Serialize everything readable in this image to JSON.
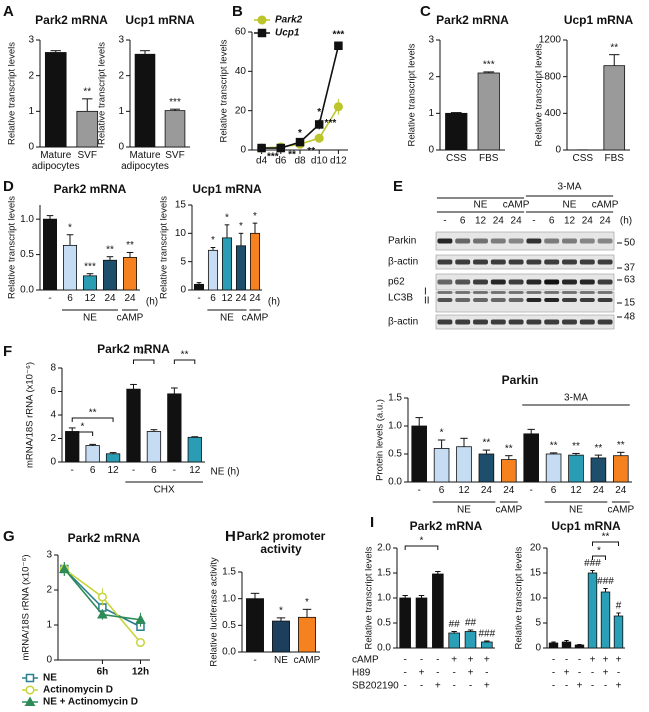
{
  "chart_data": [
    {
      "type": "bar",
      "label": "A",
      "title": "Park2 mRNA",
      "ylabel": "Relative transcript levels",
      "categories": [
        "Mature adipocytes",
        "SVF"
      ],
      "values": [
        2.65,
        1.0
      ],
      "errors": [
        0.05,
        0.35
      ],
      "colors": [
        "#111111",
        "#9a9a9a"
      ],
      "significance": [
        null,
        "**"
      ],
      "ylim": [
        0,
        3
      ],
      "yticks": [
        0,
        1,
        2,
        3
      ]
    },
    {
      "type": "bar",
      "title": "Ucp1 mRNA",
      "ylabel": "Relative transcript levels",
      "categories": [
        "Mature adipocytes",
        "SVF"
      ],
      "values": [
        2.6,
        1.02
      ],
      "errors": [
        0.1,
        0.04
      ],
      "colors": [
        "#111111",
        "#9a9a9a"
      ],
      "significance": [
        null,
        "***"
      ],
      "ylim": [
        0,
        3
      ],
      "yticks": [
        0,
        1,
        2,
        3
      ]
    },
    {
      "type": "line",
      "label": "B",
      "ylabel": "Relative transcript levels",
      "categories": [
        "d4",
        "d6",
        "d8",
        "d10",
        "d12"
      ],
      "series": [
        {
          "name": "Park2",
          "color": "#bcc62a",
          "values": [
            1,
            1.5,
            3,
            6,
            22
          ],
          "errors": [
            0.3,
            0.5,
            1,
            2,
            4
          ],
          "significance": [
            null,
            "***",
            "**",
            "**",
            "***"
          ]
        },
        {
          "name": "Ucp1",
          "color": "#111111",
          "values": [
            1,
            1,
            4,
            13,
            53
          ],
          "errors": [
            0.2,
            0.3,
            1,
            2.5,
            2
          ],
          "significance": [
            null,
            null,
            "*",
            "*",
            "***"
          ]
        }
      ],
      "ylim": [
        0,
        60
      ],
      "yticks": [
        0,
        20,
        40,
        60
      ]
    },
    {
      "type": "bar",
      "label": "C",
      "title": "Park2 mRNA",
      "ylabel": "Relative transcript levels",
      "categories": [
        "CSS",
        "FBS"
      ],
      "values": [
        1.0,
        2.1
      ],
      "errors": [
        0.02,
        0.03
      ],
      "colors": [
        "#111111",
        "#9a9a9a"
      ],
      "significance": [
        null,
        "***"
      ],
      "ylim": [
        0,
        3
      ],
      "yticks": [
        0,
        1,
        2,
        3
      ]
    },
    {
      "type": "bar",
      "title": "Ucp1 mRNA",
      "ylabel": "Relative transcript levels",
      "categories": [
        "CSS",
        "FBS"
      ],
      "values": [
        1,
        920
      ],
      "errors": [
        0,
        120
      ],
      "colors": [
        "#111111",
        "#9a9a9a"
      ],
      "significance": [
        null,
        "**"
      ],
      "ylim": [
        0,
        1200
      ],
      "yticks": [
        0,
        400,
        800,
        1200
      ]
    },
    {
      "type": "bar",
      "label": "D",
      "title": "Park2 mRNA",
      "ylabel": "Relative transcript levels",
      "categories": [
        "-",
        "6",
        "12",
        "24",
        "24"
      ],
      "values": [
        1.0,
        0.63,
        0.2,
        0.42,
        0.46
      ],
      "errors": [
        0.05,
        0.15,
        0.03,
        0.05,
        0.07
      ],
      "colors": [
        "#111111",
        "#c6dcf2",
        "#2a9db5",
        "#1d4e6b",
        "#f5821f"
      ],
      "significance": [
        null,
        "*",
        "***",
        "**",
        "**"
      ],
      "groups": [
        "NE",
        "cAMP"
      ],
      "unit": "(h)",
      "ylim": [
        0,
        1.2
      ],
      "yticks": [
        {
          "value": 0,
          "label": "0.0"
        },
        {
          "value": 0.5,
          "label": "0.5"
        },
        {
          "value": 1,
          "label": "1.0"
        }
      ]
    },
    {
      "type": "bar",
      "title": "Ucp1 mRNA",
      "ylabel": "Relative transcript levels",
      "categories": [
        "-",
        "6",
        "12",
        "24",
        "24"
      ],
      "values": [
        1,
        7,
        9.2,
        7.8,
        10
      ],
      "errors": [
        0.3,
        0.5,
        2.3,
        2.2,
        1.8
      ],
      "colors": [
        "#111111",
        "#c6dcf2",
        "#2a9db5",
        "#1d4e6b",
        "#f5821f"
      ],
      "significance": [
        null,
        "*",
        "*",
        "*",
        "*"
      ],
      "groups": [
        "NE",
        "cAMP"
      ],
      "unit": "(h)",
      "ylim": [
        0,
        15
      ],
      "yticks": [
        0,
        5,
        10,
        15
      ]
    },
    {
      "type": "blot",
      "label": "E",
      "groups": [
        "NE",
        "cAMP",
        "3-MA",
        "NE",
        "cAMP"
      ],
      "lanes": [
        "-",
        "6",
        "12",
        "24",
        "24",
        "-",
        "6",
        "12",
        "24",
        "24"
      ],
      "unit": "(h)",
      "rows": [
        "Parkin",
        "β-actin",
        "p62",
        "LC3B",
        "β-actin"
      ],
      "lc3_forms": [
        "I",
        "II"
      ],
      "markers": [
        50,
        37,
        63,
        15,
        48
      ]
    },
    {
      "type": "bar",
      "title": "Parkin",
      "ylabel": "Protein levels (a.u.)",
      "categories": [
        "-",
        "6",
        "12",
        "24",
        "24",
        "-",
        "6",
        "12",
        "24",
        "24"
      ],
      "values": [
        1.0,
        0.6,
        0.63,
        0.5,
        0.4,
        0.86,
        0.5,
        0.48,
        0.43,
        0.47
      ],
      "errors": [
        0.15,
        0.15,
        0.15,
        0.07,
        0.07,
        0.08,
        0.02,
        0.03,
        0.05,
        0.06
      ],
      "colors": [
        "#111111",
        "#c6dcf2",
        "#c6dcf2",
        "#1d4e6b",
        "#f5821f",
        "#111111",
        "#c6dcf2",
        "#2a9db5",
        "#1d4e6b",
        "#f5821f"
      ],
      "significance": [
        null,
        "*",
        null,
        "**",
        "**",
        null,
        "**",
        "**",
        "**",
        "**"
      ],
      "groups": [
        "NE",
        "cAMP",
        "NE",
        "cAMP",
        "3-MA"
      ],
      "ylim": [
        0,
        1.5
      ],
      "yticks": [
        {
          "value": 0,
          "label": "0.0"
        },
        {
          "value": 0.5,
          "label": "0.5"
        },
        {
          "value": 1,
          "label": "1.0"
        },
        {
          "value": 1.5,
          "label": "1.5"
        }
      ]
    },
    {
      "type": "bar",
      "label": "F",
      "title": "Park2 mRNA",
      "ylabel": "mRNA/18S rRNA (x10⁻⁶)",
      "categories": [
        "-",
        "6",
        "12",
        "-",
        "6",
        "-",
        "12"
      ],
      "values": [
        2.6,
        1.4,
        0.7,
        6.2,
        2.6,
        5.8,
        2.1
      ],
      "errors": [
        0.3,
        0.1,
        0.1,
        0.4,
        0.15,
        0.5,
        0.05
      ],
      "colors": [
        "#111111",
        "#c6dcf2",
        "#2a9db5",
        "#111111",
        "#c6dcf2",
        "#111111",
        "#2a9db5"
      ],
      "brackets": [
        "*",
        "**",
        "**",
        "**"
      ],
      "groups": [
        "CHX"
      ],
      "unit": "NE (h)",
      "ylim": [
        0,
        8
      ],
      "yticks": [
        0,
        2,
        4,
        6,
        8
      ]
    },
    {
      "type": "line",
      "label": "G",
      "title": "Park2 mRNA",
      "ylabel": "mRNA/18S rRNA (x10⁻⁶)",
      "x": [
        0,
        6,
        12
      ],
      "series": [
        {
          "name": "NE",
          "color": "#2a7f8f",
          "values": [
            2.6,
            1.5,
            0.95
          ],
          "errors": [
            0.2,
            0.15,
            0.1
          ]
        },
        {
          "name": "Actinomycin D",
          "color": "#c8d43a",
          "values": [
            2.6,
            1.8,
            0.5
          ],
          "errors": [
            0.2,
            0.25,
            0.1
          ]
        },
        {
          "name": "NE + Actinomycin D",
          "color": "#2e8b57",
          "values": [
            2.6,
            1.3,
            1.15
          ],
          "errors": [
            0.2,
            0.15,
            0.2
          ]
        }
      ],
      "xlim": [
        -1,
        13.5
      ],
      "xticks": [
        {
          "value": 6,
          "label": "6h"
        },
        {
          "value": 12,
          "label": "12h"
        }
      ],
      "ylim": [
        0,
        3
      ],
      "yticks": [
        0,
        1,
        2,
        3
      ]
    },
    {
      "type": "bar",
      "label": "H",
      "title": "Park2 promoter activity",
      "ylabel": "Relative luciferase activity",
      "categories": [
        "-",
        "NE",
        "cAMP"
      ],
      "values": [
        1.0,
        0.58,
        0.65
      ],
      "errors": [
        0.1,
        0.06,
        0.15
      ],
      "colors": [
        "#111111",
        "#1d3f5e",
        "#f5821f"
      ],
      "significance": [
        null,
        "*",
        "*"
      ],
      "ylim": [
        0,
        1.5
      ],
      "yticks": [
        {
          "value": 0,
          "label": "0.0"
        },
        {
          "value": 0.5,
          "label": "0.5"
        },
        {
          "value": 1,
          "label": "1.0"
        },
        {
          "value": 1.5,
          "label": "1.5"
        }
      ]
    },
    {
      "type": "bar",
      "label": "I",
      "title": "Park2 mRNA",
      "ylabel": "Relative transcript levels",
      "values": [
        1.0,
        1.0,
        1.48,
        0.3,
        0.33,
        0.12
      ],
      "errors": [
        0.05,
        0.05,
        0.05,
        0.03,
        0.03,
        0.02
      ],
      "colors": [
        "#111111",
        "#111111",
        "#111111",
        "#2aa0b8",
        "#2aa0b8",
        "#2aa0b8"
      ],
      "significance": [
        null,
        null,
        null,
        "##",
        "##",
        "###"
      ],
      "brackets": [
        "*"
      ],
      "treatments": [
        {
          "name": "cAMP",
          "signs": [
            "-",
            "-",
            "-",
            "+",
            "+",
            "+"
          ]
        },
        {
          "name": "H89",
          "signs": [
            "-",
            "+",
            "-",
            "-",
            "+",
            "-"
          ]
        },
        {
          "name": "SB202190",
          "signs": [
            "-",
            "-",
            "+",
            "-",
            "-",
            "+"
          ]
        }
      ],
      "ylim": [
        0,
        2
      ],
      "yticks": [
        {
          "value": 0,
          "label": "0.0"
        },
        {
          "value": 0.5,
          "label": "0.5"
        },
        {
          "value": 1,
          "label": "1.0"
        },
        {
          "value": 1.5,
          "label": "1.5"
        },
        {
          "value": 2,
          "label": "2.0"
        }
      ]
    },
    {
      "type": "bar",
      "title": "Ucp1 mRNA",
      "ylabel": "Relative transcript levels",
      "values": [
        1,
        1.2,
        0.6,
        15,
        11.2,
        6.4
      ],
      "errors": [
        0.2,
        0.3,
        0.1,
        0.5,
        0.7,
        0.6
      ],
      "colors": [
        "#111111",
        "#111111",
        "#111111",
        "#2aa0b8",
        "#2aa0b8",
        "#2aa0b8"
      ],
      "significance": [
        null,
        null,
        null,
        "###",
        "###",
        "#"
      ],
      "brackets": [
        "*",
        "**"
      ],
      "treatments": [
        {
          "signs": [
            "-",
            "-",
            "-",
            "+",
            "+",
            "+"
          ]
        },
        {
          "signs": [
            "-",
            "+",
            "-",
            "-",
            "+",
            "-"
          ]
        },
        {
          "signs": [
            "-",
            "-",
            "+",
            "-",
            "-",
            "+"
          ]
        }
      ],
      "ylim": [
        0,
        20
      ],
      "yticks": [
        0,
        5,
        10,
        15,
        20
      ]
    }
  ]
}
